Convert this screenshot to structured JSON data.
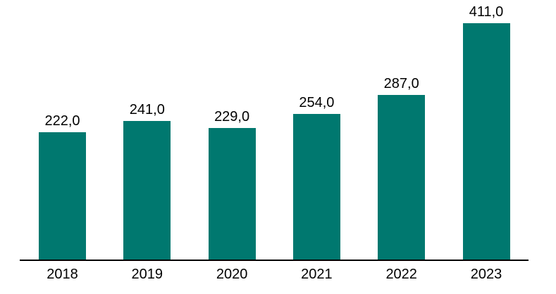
{
  "chart_data": {
    "type": "bar",
    "title": "",
    "xlabel": "",
    "ylabel": "",
    "categories": [
      "2018",
      "2019",
      "2020",
      "2021",
      "2022",
      "2023"
    ],
    "values": [
      222.0,
      241.0,
      229.0,
      254.0,
      287.0,
      411.0
    ],
    "value_labels": [
      "222,0",
      "241,0",
      "229,0",
      "254,0",
      "287,0",
      "411,0"
    ],
    "decimal_separator": ",",
    "ylim": [
      0,
      451
    ],
    "grid": false,
    "legend": "none",
    "y_axis_visible": false,
    "bar_color": "#00786F",
    "axis_line_color": "#000000",
    "label_color": "#000000",
    "background_color": "#ffffff"
  }
}
